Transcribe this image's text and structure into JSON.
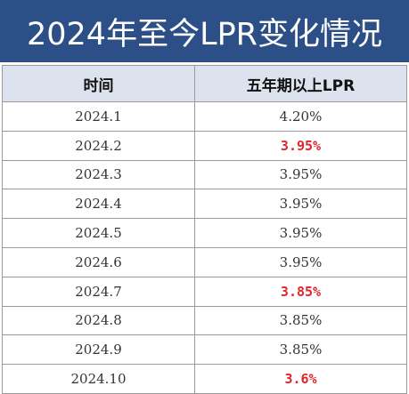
{
  "title": "2024年至今LPR变化情况",
  "table": {
    "headers": [
      "时间",
      "五年期以上LPR"
    ],
    "rows": [
      {
        "period": "2024.1",
        "rate": "4.20%",
        "highlight": false
      },
      {
        "period": "2024.2",
        "rate": "3.95%",
        "highlight": true
      },
      {
        "period": "2024.3",
        "rate": "3.95%",
        "highlight": false
      },
      {
        "period": "2024.4",
        "rate": "3.95%",
        "highlight": false
      },
      {
        "period": "2024.5",
        "rate": "3.95%",
        "highlight": false
      },
      {
        "period": "2024.6",
        "rate": "3.95%",
        "highlight": false
      },
      {
        "period": "2024.7",
        "rate": "3.85%",
        "highlight": true
      },
      {
        "period": "2024.8",
        "rate": "3.85%",
        "highlight": false
      },
      {
        "period": "2024.9",
        "rate": "3.85%",
        "highlight": false
      },
      {
        "period": "2024.10",
        "rate": "3.6%",
        "highlight": true
      }
    ]
  },
  "colors": {
    "title_background": "#2b4f86",
    "title_text": "#ffffff",
    "header_background": "#dde3ee",
    "highlight_text": "#e0262b",
    "body_text": "#333333"
  }
}
